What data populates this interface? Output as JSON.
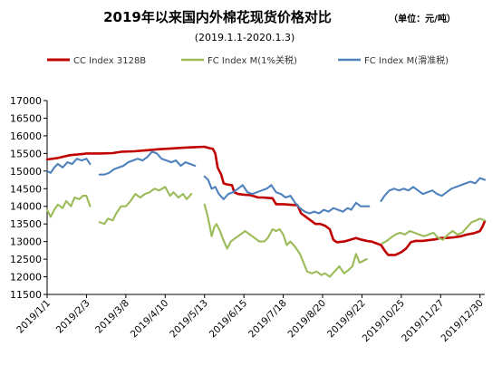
{
  "chart_data": {
    "type": "line",
    "title": "2019年以来国内外棉花现货价格对比",
    "unit_note": "（单位：元/吨）",
    "subtitle": "(2019.1.1-2020.1.3)",
    "xlabel": "",
    "ylabel": "",
    "ylim": [
      11500,
      17000
    ],
    "y_ticks": [
      11500,
      12000,
      12500,
      13000,
      13500,
      14000,
      14500,
      15000,
      15500,
      16000,
      16500,
      17000
    ],
    "x_range": [
      "2019/1/1",
      "2020/1/3"
    ],
    "x_ticks": [
      "2019/1/1",
      "2019/2/3",
      "2019/3/8",
      "2019/4/10",
      "2019/5/13",
      "2019/6/15",
      "2019/7/18",
      "2019/8/20",
      "2019/9/22",
      "2019/10/25",
      "2019/11/27",
      "2019/12/30"
    ],
    "grid": false,
    "legend_position": "top",
    "series": [
      {
        "name": "CC Index 3128B",
        "color": "#c00000",
        "points": [
          [
            "2019/1/1",
            15330
          ],
          [
            "2019/1/10",
            15370
          ],
          [
            "2019/1/20",
            15450
          ],
          [
            "2019/2/1",
            15490
          ],
          [
            "2019/2/3",
            15500
          ],
          [
            "2019/2/15",
            15500
          ],
          [
            "2019/2/25",
            15510
          ],
          [
            "2019/3/5",
            15550
          ],
          [
            "2019/3/15",
            15560
          ],
          [
            "2019/3/25",
            15590
          ],
          [
            "2019/4/5",
            15620
          ],
          [
            "2019/4/15",
            15640
          ],
          [
            "2019/4/25",
            15660
          ],
          [
            "2019/5/5",
            15680
          ],
          [
            "2019/5/13",
            15690
          ],
          [
            "2019/5/17",
            15650
          ],
          [
            "2019/5/20",
            15630
          ],
          [
            "2019/5/22",
            15500
          ],
          [
            "2019/5/24",
            15100
          ],
          [
            "2019/5/27",
            14900
          ],
          [
            "2019/5/29",
            14650
          ],
          [
            "2019/6/1",
            14620
          ],
          [
            "2019/6/5",
            14600
          ],
          [
            "2019/6/7",
            14400
          ],
          [
            "2019/6/10",
            14350
          ],
          [
            "2019/6/15",
            14330
          ],
          [
            "2019/6/20",
            14320
          ],
          [
            "2019/6/24",
            14280
          ],
          [
            "2019/6/27",
            14250
          ],
          [
            "2019/7/1",
            14250
          ],
          [
            "2019/7/5",
            14240
          ],
          [
            "2019/7/9",
            14230
          ],
          [
            "2019/7/12",
            14060
          ],
          [
            "2019/7/18",
            14060
          ],
          [
            "2019/7/22",
            14050
          ],
          [
            "2019/7/26",
            14040
          ],
          [
            "2019/7/30",
            14030
          ],
          [
            "2019/8/2",
            13800
          ],
          [
            "2019/8/6",
            13700
          ],
          [
            "2019/8/10",
            13600
          ],
          [
            "2019/8/14",
            13500
          ],
          [
            "2019/8/18",
            13500
          ],
          [
            "2019/8/22",
            13450
          ],
          [
            "2019/8/26",
            13350
          ],
          [
            "2019/8/29",
            13050
          ],
          [
            "2019/9/1",
            12980
          ],
          [
            "2019/9/7",
            13000
          ],
          [
            "2019/9/12",
            13050
          ],
          [
            "2019/9/17",
            13100
          ],
          [
            "2019/9/22",
            13050
          ],
          [
            "2019/9/27",
            13010
          ],
          [
            "2019/9/30",
            13000
          ],
          [
            "2019/10/8",
            12900
          ],
          [
            "2019/10/11",
            12750
          ],
          [
            "2019/10/14",
            12620
          ],
          [
            "2019/10/20",
            12620
          ],
          [
            "2019/10/25",
            12700
          ],
          [
            "2019/10/29",
            12800
          ],
          [
            "2019/11/2",
            12980
          ],
          [
            "2019/11/6",
            13020
          ],
          [
            "2019/11/12",
            13020
          ],
          [
            "2019/11/17",
            13040
          ],
          [
            "2019/11/22",
            13060
          ],
          [
            "2019/11/27",
            13100
          ],
          [
            "2019/12/2",
            13100
          ],
          [
            "2019/12/8",
            13120
          ],
          [
            "2019/12/14",
            13150
          ],
          [
            "2019/12/19",
            13200
          ],
          [
            "2019/12/24",
            13230
          ],
          [
            "2019/12/27",
            13260
          ],
          [
            "2019/12/30",
            13300
          ],
          [
            "2020/1/1",
            13420
          ],
          [
            "2020/1/3",
            13580
          ]
        ]
      },
      {
        "name": "FC Index M(1%关税)",
        "color": "#9bbb59",
        "points": [
          [
            "2019/1/1",
            13900
          ],
          [
            "2019/1/4",
            13700
          ],
          [
            "2019/1/7",
            13900
          ],
          [
            "2019/1/10",
            14050
          ],
          [
            "2019/1/14",
            13950
          ],
          [
            "2019/1/17",
            14150
          ],
          [
            "2019/1/21",
            14000
          ],
          [
            "2019/1/24",
            14250
          ],
          [
            "2019/1/28",
            14200
          ],
          [
            "2019/1/31",
            14300
          ],
          [
            "2019/2/3",
            14300
          ],
          [
            "2019/2/6",
            14000
          ],
          [
            "2019/2/12",
            null
          ],
          [
            "2019/2/14",
            13550
          ],
          [
            "2019/2/18",
            13500
          ],
          [
            "2019/2/21",
            13650
          ],
          [
            "2019/2/25",
            13600
          ],
          [
            "2019/2/28",
            13800
          ],
          [
            "2019/3/4",
            14000
          ],
          [
            "2019/3/8",
            14000
          ],
          [
            "2019/3/12",
            14150
          ],
          [
            "2019/3/16",
            14350
          ],
          [
            "2019/3/20",
            14250
          ],
          [
            "2019/3/24",
            14350
          ],
          [
            "2019/3/28",
            14400
          ],
          [
            "2019/4/1",
            14500
          ],
          [
            "2019/4/5",
            14450
          ],
          [
            "2019/4/10",
            14550
          ],
          [
            "2019/4/14",
            14300
          ],
          [
            "2019/4/17",
            14400
          ],
          [
            "2019/4/21",
            14250
          ],
          [
            "2019/4/25",
            14350
          ],
          [
            "2019/4/28",
            14200
          ],
          [
            "2019/5/2",
            14350
          ],
          [
            "2019/5/5",
            null
          ],
          [
            "2019/5/13",
            14050
          ],
          [
            "2019/5/15",
            13800
          ],
          [
            "2019/5/17",
            13500
          ],
          [
            "2019/5/19",
            13150
          ],
          [
            "2019/5/21",
            13400
          ],
          [
            "2019/5/23",
            13500
          ],
          [
            "2019/5/26",
            13300
          ],
          [
            "2019/5/28",
            13100
          ],
          [
            "2019/6/1",
            12800
          ],
          [
            "2019/6/4",
            13000
          ],
          [
            "2019/6/8",
            13100
          ],
          [
            "2019/6/12",
            13200
          ],
          [
            "2019/6/16",
            13300
          ],
          [
            "2019/6/20",
            13200
          ],
          [
            "2019/6/24",
            13100
          ],
          [
            "2019/6/28",
            13000
          ],
          [
            "2019/7/2",
            13000
          ],
          [
            "2019/7/5",
            13100
          ],
          [
            "2019/7/9",
            13350
          ],
          [
            "2019/7/12",
            13300
          ],
          [
            "2019/7/15",
            13350
          ],
          [
            "2019/7/18",
            13200
          ],
          [
            "2019/7/21",
            12900
          ],
          [
            "2019/7/24",
            13000
          ],
          [
            "2019/7/28",
            12850
          ],
          [
            "2019/8/1",
            12650
          ],
          [
            "2019/8/4",
            12400
          ],
          [
            "2019/8/7",
            12150
          ],
          [
            "2019/8/11",
            12100
          ],
          [
            "2019/8/15",
            12150
          ],
          [
            "2019/8/19",
            12050
          ],
          [
            "2019/8/22",
            12100
          ],
          [
            "2019/8/26",
            12000
          ],
          [
            "2019/8/30",
            12150
          ],
          [
            "2019/9/3",
            12300
          ],
          [
            "2019/9/7",
            12100
          ],
          [
            "2019/9/11",
            12200
          ],
          [
            "2019/9/14",
            12300
          ],
          [
            "2019/9/17",
            12650
          ],
          [
            "2019/9/20",
            12400
          ],
          [
            "2019/9/23",
            12450
          ],
          [
            "2019/9/26",
            12500
          ],
          [
            "2019/9/30",
            null
          ],
          [
            "2019/10/9",
            12950
          ],
          [
            "2019/10/12",
            13000
          ],
          [
            "2019/10/16",
            13100
          ],
          [
            "2019/10/20",
            13200
          ],
          [
            "2019/10/24",
            13250
          ],
          [
            "2019/10/28",
            13200
          ],
          [
            "2019/11/1",
            13300
          ],
          [
            "2019/11/5",
            13250
          ],
          [
            "2019/11/9",
            13200
          ],
          [
            "2019/11/13",
            13150
          ],
          [
            "2019/11/17",
            13200
          ],
          [
            "2019/11/21",
            13250
          ],
          [
            "2019/11/25",
            13100
          ],
          [
            "2019/11/29",
            13050
          ],
          [
            "2019/12/3",
            13200
          ],
          [
            "2019/12/7",
            13300
          ],
          [
            "2019/12/11",
            13200
          ],
          [
            "2019/12/15",
            13250
          ],
          [
            "2019/12/19",
            13400
          ],
          [
            "2019/12/23",
            13550
          ],
          [
            "2019/12/27",
            13600
          ],
          [
            "2019/12/30",
            13650
          ],
          [
            "2020/1/3",
            13600
          ]
        ]
      },
      {
        "name": "FC Index M(滑准税)",
        "color": "#4f81bd",
        "points": [
          [
            "2019/1/1",
            15000
          ],
          [
            "2019/1/4",
            14950
          ],
          [
            "2019/1/7",
            15100
          ],
          [
            "2019/1/10",
            15200
          ],
          [
            "2019/1/14",
            15100
          ],
          [
            "2019/1/18",
            15250
          ],
          [
            "2019/1/22",
            15200
          ],
          [
            "2019/1/26",
            15350
          ],
          [
            "2019/1/30",
            15300
          ],
          [
            "2019/2/3",
            15350
          ],
          [
            "2019/2/6",
            15200
          ],
          [
            "2019/2/12",
            null
          ],
          [
            "2019/2/14",
            14900
          ],
          [
            "2019/2/18",
            14900
          ],
          [
            "2019/2/22",
            14950
          ],
          [
            "2019/2/26",
            15050
          ],
          [
            "2019/3/2",
            15100
          ],
          [
            "2019/3/6",
            15150
          ],
          [
            "2019/3/10",
            15250
          ],
          [
            "2019/3/14",
            15300
          ],
          [
            "2019/3/18",
            15350
          ],
          [
            "2019/3/22",
            15300
          ],
          [
            "2019/3/26",
            15400
          ],
          [
            "2019/3/30",
            15550
          ],
          [
            "2019/4/3",
            15500
          ],
          [
            "2019/4/7",
            15350
          ],
          [
            "2019/4/11",
            15300
          ],
          [
            "2019/4/15",
            15250
          ],
          [
            "2019/4/19",
            15300
          ],
          [
            "2019/4/23",
            15150
          ],
          [
            "2019/4/27",
            15250
          ],
          [
            "2019/5/1",
            15200
          ],
          [
            "2019/5/5",
            15150
          ],
          [
            "2019/5/8",
            null
          ],
          [
            "2019/5/13",
            14850
          ],
          [
            "2019/5/16",
            14750
          ],
          [
            "2019/5/19",
            14500
          ],
          [
            "2019/5/22",
            14550
          ],
          [
            "2019/5/25",
            14350
          ],
          [
            "2019/5/29",
            14200
          ],
          [
            "2019/6/2",
            14350
          ],
          [
            "2019/6/6",
            14400
          ],
          [
            "2019/6/10",
            14500
          ],
          [
            "2019/6/14",
            14600
          ],
          [
            "2019/6/18",
            14400
          ],
          [
            "2019/6/22",
            14350
          ],
          [
            "2019/6/26",
            14400
          ],
          [
            "2019/6/30",
            14450
          ],
          [
            "2019/7/4",
            14500
          ],
          [
            "2019/7/8",
            14600
          ],
          [
            "2019/7/12",
            14400
          ],
          [
            "2019/7/16",
            14350
          ],
          [
            "2019/7/20",
            14250
          ],
          [
            "2019/7/24",
            14300
          ],
          [
            "2019/7/28",
            14100
          ],
          [
            "2019/8/1",
            13950
          ],
          [
            "2019/8/5",
            13850
          ],
          [
            "2019/8/9",
            13800
          ],
          [
            "2019/8/13",
            13850
          ],
          [
            "2019/8/17",
            13800
          ],
          [
            "2019/8/21",
            13900
          ],
          [
            "2019/8/25",
            13850
          ],
          [
            "2019/8/29",
            13950
          ],
          [
            "2019/9/2",
            13900
          ],
          [
            "2019/9/6",
            13850
          ],
          [
            "2019/9/10",
            13950
          ],
          [
            "2019/9/13",
            13900
          ],
          [
            "2019/9/17",
            14100
          ],
          [
            "2019/9/21",
            14000
          ],
          [
            "2019/9/25",
            14000
          ],
          [
            "2019/9/28",
            14000
          ],
          [
            "2019/9/30",
            null
          ],
          [
            "2019/10/8",
            14150
          ],
          [
            "2019/10/11",
            14300
          ],
          [
            "2019/10/15",
            14450
          ],
          [
            "2019/10/19",
            14500
          ],
          [
            "2019/10/23",
            14450
          ],
          [
            "2019/10/27",
            14500
          ],
          [
            "2019/10/31",
            14450
          ],
          [
            "2019/11/4",
            14550
          ],
          [
            "2019/11/8",
            14450
          ],
          [
            "2019/11/12",
            14350
          ],
          [
            "2019/11/16",
            14400
          ],
          [
            "2019/11/20",
            14450
          ],
          [
            "2019/11/24",
            14350
          ],
          [
            "2019/11/28",
            14300
          ],
          [
            "2019/12/2",
            14400
          ],
          [
            "2019/12/6",
            14500
          ],
          [
            "2019/12/10",
            14550
          ],
          [
            "2019/12/14",
            14600
          ],
          [
            "2019/12/18",
            14650
          ],
          [
            "2019/12/22",
            14700
          ],
          [
            "2019/12/26",
            14650
          ],
          [
            "2019/12/30",
            14800
          ],
          [
            "2020/1/3",
            14750
          ]
        ]
      }
    ]
  }
}
